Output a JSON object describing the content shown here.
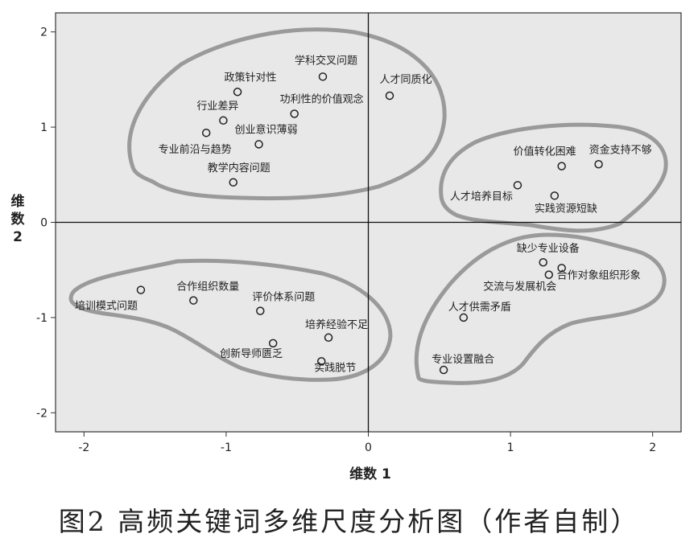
{
  "caption": "图2 高频关键词多维尺度分析图（作者自制）",
  "chart_data": {
    "type": "scatter",
    "xlabel": "维数 1",
    "ylabel": "维数 2",
    "xlim": [
      -2.2,
      2.2
    ],
    "ylim": [
      -2.2,
      2.2
    ],
    "xticks": [
      -2,
      -1,
      0,
      1,
      2
    ],
    "yticks": [
      -2,
      -1,
      0,
      1,
      2
    ],
    "grid": false,
    "background": "#e8e8e8",
    "point_color": "#222222",
    "cluster_outline_color": "#9a9a9a",
    "points": [
      {
        "label": "学科交叉问题",
        "x": -0.32,
        "y": 1.53
      },
      {
        "label": "人才同质化",
        "x": 0.15,
        "y": 1.33
      },
      {
        "label": "政策针对性",
        "x": -0.92,
        "y": 1.37
      },
      {
        "label": "功利性的价值观念",
        "x": -0.52,
        "y": 1.14
      },
      {
        "label": "行业差异",
        "x": -1.02,
        "y": 1.07
      },
      {
        "label": "创业意识薄弱",
        "x": -0.77,
        "y": 0.82
      },
      {
        "label": "专业前沿与趋势",
        "x": -1.14,
        "y": 0.94
      },
      {
        "label": "教学内容问题",
        "x": -0.95,
        "y": 0.42
      },
      {
        "label": "价值转化困难",
        "x": 1.36,
        "y": 0.59
      },
      {
        "label": "资金支持不够",
        "x": 1.62,
        "y": 0.61
      },
      {
        "label": "人才培养目标",
        "x": 1.05,
        "y": 0.39
      },
      {
        "label": "实践资源短缺",
        "x": 1.31,
        "y": 0.28
      },
      {
        "label": "缺少专业设备",
        "x": 1.23,
        "y": -0.42
      },
      {
        "label": "交流与发展机会",
        "x": 1.27,
        "y": -0.55
      },
      {
        "label": "合作对象组织形象",
        "x": 1.36,
        "y": -0.48
      },
      {
        "label": "人才供需矛盾",
        "x": 0.67,
        "y": -1.0
      },
      {
        "label": "专业设置融合",
        "x": 0.53,
        "y": -1.55
      },
      {
        "label": "培训模式问题",
        "x": -1.6,
        "y": -0.71
      },
      {
        "label": "合作组织数量",
        "x": -1.23,
        "y": -0.82
      },
      {
        "label": "评价体系问题",
        "x": -0.76,
        "y": -0.93
      },
      {
        "label": "培养经验不足",
        "x": -0.28,
        "y": -1.21
      },
      {
        "label": "创新导师匮乏",
        "x": -0.67,
        "y": -1.27
      },
      {
        "label": "实践脱节",
        "x": -0.33,
        "y": -1.46
      }
    ]
  }
}
